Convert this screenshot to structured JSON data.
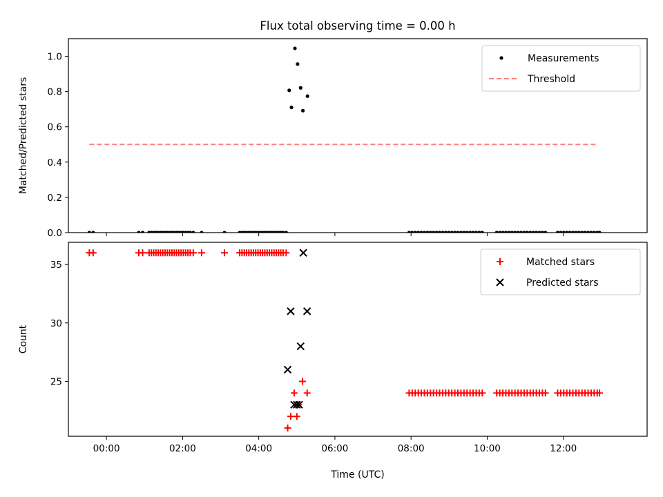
{
  "chart_data": [
    {
      "type": "scatter",
      "title": "Flux total observing time = 0.00 h",
      "xlabel": "",
      "ylabel": "Matched/Predicted stars",
      "xlim": [
        -1.0,
        14.2
      ],
      "ylim": [
        0.0,
        1.1
      ],
      "xticks": [
        0,
        2,
        4,
        6,
        8,
        10,
        12
      ],
      "yticks": [
        0.0,
        0.2,
        0.4,
        0.6,
        0.8,
        1.0
      ],
      "ytick_labels": [
        "0.0",
        "0.2",
        "0.4",
        "0.6",
        "0.8",
        "1.0"
      ],
      "legend": "top-right",
      "series": [
        {
          "name": "Measurements",
          "style": "dot",
          "color": "#000000",
          "points": [
            [
              -0.45,
              0
            ],
            [
              -0.35,
              0
            ],
            [
              0.85,
              0
            ],
            [
              0.95,
              0
            ],
            [
              1.12,
              0
            ],
            [
              1.18,
              0
            ],
            [
              1.24,
              0
            ],
            [
              1.3,
              0
            ],
            [
              1.36,
              0
            ],
            [
              1.42,
              0
            ],
            [
              1.48,
              0
            ],
            [
              1.54,
              0
            ],
            [
              1.6,
              0
            ],
            [
              1.66,
              0
            ],
            [
              1.72,
              0
            ],
            [
              1.78,
              0
            ],
            [
              1.84,
              0
            ],
            [
              1.9,
              0
            ],
            [
              1.96,
              0
            ],
            [
              2.02,
              0
            ],
            [
              2.08,
              0
            ],
            [
              2.14,
              0
            ],
            [
              2.2,
              0
            ],
            [
              2.28,
              0
            ],
            [
              2.5,
              0
            ],
            [
              3.1,
              0
            ],
            [
              3.5,
              0
            ],
            [
              3.56,
              0
            ],
            [
              3.62,
              0
            ],
            [
              3.68,
              0
            ],
            [
              3.74,
              0
            ],
            [
              3.8,
              0
            ],
            [
              3.86,
              0
            ],
            [
              3.92,
              0
            ],
            [
              3.98,
              0
            ],
            [
              4.04,
              0
            ],
            [
              4.1,
              0
            ],
            [
              4.16,
              0
            ],
            [
              4.22,
              0
            ],
            [
              4.28,
              0
            ],
            [
              4.34,
              0
            ],
            [
              4.4,
              0
            ],
            [
              4.46,
              0
            ],
            [
              4.52,
              0
            ],
            [
              4.58,
              0
            ],
            [
              4.64,
              0
            ],
            [
              4.72,
              0
            ],
            [
              4.8,
              0.807
            ],
            [
              4.86,
              0.71
            ],
            [
              4.95,
              1.045
            ],
            [
              5.02,
              0.956
            ],
            [
              5.1,
              0.821
            ],
            [
              5.16,
              0.692
            ],
            [
              5.28,
              0.774
            ],
            [
              7.95,
              0
            ],
            [
              8.03,
              0
            ],
            [
              8.11,
              0
            ],
            [
              8.19,
              0
            ],
            [
              8.27,
              0
            ],
            [
              8.35,
              0
            ],
            [
              8.43,
              0
            ],
            [
              8.51,
              0
            ],
            [
              8.59,
              0
            ],
            [
              8.67,
              0
            ],
            [
              8.75,
              0
            ],
            [
              8.83,
              0
            ],
            [
              8.91,
              0
            ],
            [
              8.99,
              0
            ],
            [
              9.07,
              0
            ],
            [
              9.15,
              0
            ],
            [
              9.23,
              0
            ],
            [
              9.31,
              0
            ],
            [
              9.39,
              0
            ],
            [
              9.47,
              0
            ],
            [
              9.55,
              0
            ],
            [
              9.63,
              0
            ],
            [
              9.71,
              0
            ],
            [
              9.79,
              0
            ],
            [
              9.87,
              0
            ],
            [
              10.25,
              0
            ],
            [
              10.33,
              0
            ],
            [
              10.41,
              0
            ],
            [
              10.49,
              0
            ],
            [
              10.57,
              0
            ],
            [
              10.65,
              0
            ],
            [
              10.73,
              0
            ],
            [
              10.81,
              0
            ],
            [
              10.89,
              0
            ],
            [
              10.97,
              0
            ],
            [
              11.05,
              0
            ],
            [
              11.13,
              0
            ],
            [
              11.21,
              0
            ],
            [
              11.29,
              0
            ],
            [
              11.37,
              0
            ],
            [
              11.45,
              0
            ],
            [
              11.53,
              0
            ],
            [
              11.85,
              0
            ],
            [
              11.93,
              0
            ],
            [
              12.01,
              0
            ],
            [
              12.09,
              0
            ],
            [
              12.17,
              0
            ],
            [
              12.25,
              0
            ],
            [
              12.33,
              0
            ],
            [
              12.41,
              0
            ],
            [
              12.49,
              0
            ],
            [
              12.57,
              0
            ],
            [
              12.65,
              0
            ],
            [
              12.73,
              0
            ],
            [
              12.81,
              0
            ],
            [
              12.89,
              0
            ],
            [
              12.95,
              0
            ]
          ]
        },
        {
          "name": "Threshold",
          "style": "dashed-line",
          "color": "#ff7f7f",
          "points": [
            [
              -0.45,
              0.5
            ],
            [
              12.9,
              0.5
            ]
          ]
        }
      ]
    },
    {
      "type": "scatter",
      "title": "",
      "xlabel": "Time (UTC)",
      "ylabel": "Count",
      "xlim": [
        -1.0,
        14.2
      ],
      "ylim": [
        20.3,
        36.9
      ],
      "xticks": [
        0,
        2,
        4,
        6,
        8,
        10,
        12
      ],
      "xtick_labels": [
        "00:00",
        "02:00",
        "04:00",
        "06:00",
        "08:00",
        "10:00",
        "12:00"
      ],
      "yticks": [
        25,
        30,
        35
      ],
      "ytick_labels": [
        "25",
        "30",
        "35"
      ],
      "legend": "top-right",
      "series": [
        {
          "name": "Matched stars",
          "style": "plus",
          "color": "#ff0000",
          "points": [
            [
              -0.45,
              36
            ],
            [
              -0.35,
              36
            ],
            [
              0.85,
              36
            ],
            [
              0.95,
              36
            ],
            [
              1.12,
              36
            ],
            [
              1.18,
              36
            ],
            [
              1.24,
              36
            ],
            [
              1.3,
              36
            ],
            [
              1.36,
              36
            ],
            [
              1.42,
              36
            ],
            [
              1.48,
              36
            ],
            [
              1.54,
              36
            ],
            [
              1.6,
              36
            ],
            [
              1.66,
              36
            ],
            [
              1.72,
              36
            ],
            [
              1.78,
              36
            ],
            [
              1.84,
              36
            ],
            [
              1.9,
              36
            ],
            [
              1.96,
              36
            ],
            [
              2.02,
              36
            ],
            [
              2.08,
              36
            ],
            [
              2.14,
              36
            ],
            [
              2.2,
              36
            ],
            [
              2.28,
              36
            ],
            [
              2.5,
              36
            ],
            [
              3.1,
              36
            ],
            [
              3.5,
              36
            ],
            [
              3.56,
              36
            ],
            [
              3.62,
              36
            ],
            [
              3.68,
              36
            ],
            [
              3.74,
              36
            ],
            [
              3.8,
              36
            ],
            [
              3.86,
              36
            ],
            [
              3.92,
              36
            ],
            [
              3.98,
              36
            ],
            [
              4.04,
              36
            ],
            [
              4.1,
              36
            ],
            [
              4.16,
              36
            ],
            [
              4.22,
              36
            ],
            [
              4.28,
              36
            ],
            [
              4.34,
              36
            ],
            [
              4.4,
              36
            ],
            [
              4.46,
              36
            ],
            [
              4.52,
              36
            ],
            [
              4.58,
              36
            ],
            [
              4.64,
              36
            ],
            [
              4.72,
              36
            ],
            [
              4.76,
              21
            ],
            [
              4.84,
              22
            ],
            [
              4.93,
              24
            ],
            [
              5.0,
              22
            ],
            [
              5.05,
              23
            ],
            [
              5.15,
              25
            ],
            [
              5.27,
              24
            ],
            [
              7.95,
              24
            ],
            [
              8.03,
              24
            ],
            [
              8.11,
              24
            ],
            [
              8.19,
              24
            ],
            [
              8.27,
              24
            ],
            [
              8.35,
              24
            ],
            [
              8.43,
              24
            ],
            [
              8.51,
              24
            ],
            [
              8.59,
              24
            ],
            [
              8.67,
              24
            ],
            [
              8.75,
              24
            ],
            [
              8.83,
              24
            ],
            [
              8.91,
              24
            ],
            [
              8.99,
              24
            ],
            [
              9.07,
              24
            ],
            [
              9.15,
              24
            ],
            [
              9.23,
              24
            ],
            [
              9.31,
              24
            ],
            [
              9.39,
              24
            ],
            [
              9.47,
              24
            ],
            [
              9.55,
              24
            ],
            [
              9.63,
              24
            ],
            [
              9.71,
              24
            ],
            [
              9.79,
              24
            ],
            [
              9.87,
              24
            ],
            [
              10.25,
              24
            ],
            [
              10.33,
              24
            ],
            [
              10.41,
              24
            ],
            [
              10.49,
              24
            ],
            [
              10.57,
              24
            ],
            [
              10.65,
              24
            ],
            [
              10.73,
              24
            ],
            [
              10.81,
              24
            ],
            [
              10.89,
              24
            ],
            [
              10.97,
              24
            ],
            [
              11.05,
              24
            ],
            [
              11.13,
              24
            ],
            [
              11.21,
              24
            ],
            [
              11.29,
              24
            ],
            [
              11.37,
              24
            ],
            [
              11.45,
              24
            ],
            [
              11.53,
              24
            ],
            [
              11.85,
              24
            ],
            [
              11.93,
              24
            ],
            [
              12.01,
              24
            ],
            [
              12.09,
              24
            ],
            [
              12.17,
              24
            ],
            [
              12.25,
              24
            ],
            [
              12.33,
              24
            ],
            [
              12.41,
              24
            ],
            [
              12.49,
              24
            ],
            [
              12.57,
              24
            ],
            [
              12.65,
              24
            ],
            [
              12.73,
              24
            ],
            [
              12.81,
              24
            ],
            [
              12.89,
              24
            ],
            [
              12.95,
              24
            ]
          ]
        },
        {
          "name": "Predicted stars",
          "style": "x",
          "color": "#000000",
          "points": [
            [
              4.76,
              26
            ],
            [
              4.84,
              31
            ],
            [
              4.93,
              23
            ],
            [
              5.0,
              23
            ],
            [
              5.06,
              23
            ],
            [
              5.1,
              28
            ],
            [
              5.17,
              36
            ],
            [
              5.27,
              31
            ]
          ]
        }
      ]
    }
  ]
}
